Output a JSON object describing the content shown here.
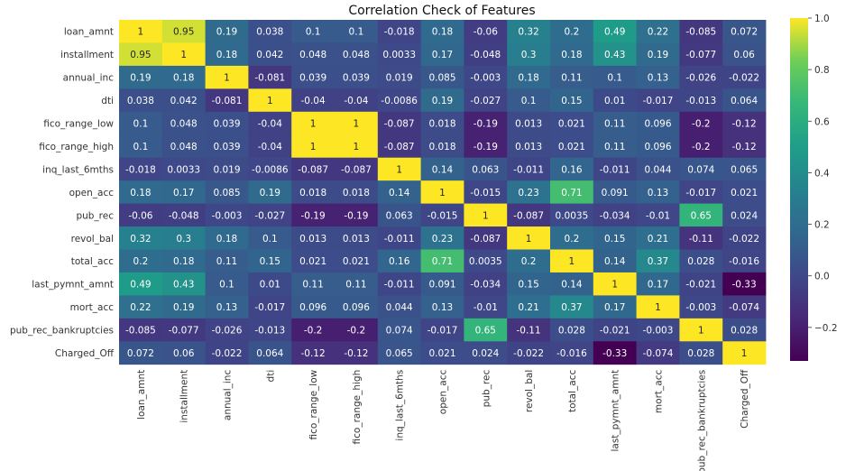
{
  "chart_data": {
    "type": "heatmap",
    "title": "Correlation Check of Features",
    "colormap": "viridis",
    "vmin": -0.33,
    "vmax": 1.0,
    "labels": [
      "loan_amnt",
      "installment",
      "annual_inc",
      "dti",
      "fico_range_low",
      "fico_range_high",
      "inq_last_6mths",
      "open_acc",
      "pub_rec",
      "revol_bal",
      "total_acc",
      "last_pymnt_amnt",
      "mort_acc",
      "pub_rec_bankruptcies",
      "Charged_Off"
    ],
    "matrix": [
      [
        1,
        0.95,
        0.19,
        0.038,
        0.1,
        0.1,
        -0.018,
        0.18,
        -0.06,
        0.32,
        0.2,
        0.49,
        0.22,
        -0.085,
        0.072
      ],
      [
        0.95,
        1,
        0.18,
        0.042,
        0.048,
        0.048,
        0.0033,
        0.17,
        -0.048,
        0.3,
        0.18,
        0.43,
        0.19,
        -0.077,
        0.06
      ],
      [
        0.19,
        0.18,
        1,
        -0.081,
        0.039,
        0.039,
        0.019,
        0.085,
        -0.003,
        0.18,
        0.11,
        0.1,
        0.13,
        -0.026,
        -0.022
      ],
      [
        0.038,
        0.042,
        -0.081,
        1,
        -0.04,
        -0.04,
        -0.0086,
        0.19,
        -0.027,
        0.1,
        0.15,
        0.01,
        -0.017,
        -0.013,
        0.064
      ],
      [
        0.1,
        0.048,
        0.039,
        -0.04,
        1,
        1,
        -0.087,
        0.018,
        -0.19,
        0.013,
        0.021,
        0.11,
        0.096,
        -0.2,
        -0.12
      ],
      [
        0.1,
        0.048,
        0.039,
        -0.04,
        1,
        1,
        -0.087,
        0.018,
        -0.19,
        0.013,
        0.021,
        0.11,
        0.096,
        -0.2,
        -0.12
      ],
      [
        -0.018,
        0.0033,
        0.019,
        -0.0086,
        -0.087,
        -0.087,
        1,
        0.14,
        0.063,
        -0.011,
        0.16,
        -0.011,
        0.044,
        0.074,
        0.065
      ],
      [
        0.18,
        0.17,
        0.085,
        0.19,
        0.018,
        0.018,
        0.14,
        1,
        -0.015,
        0.23,
        0.71,
        0.091,
        0.13,
        -0.017,
        0.021
      ],
      [
        -0.06,
        -0.048,
        -0.003,
        -0.027,
        -0.19,
        -0.19,
        0.063,
        -0.015,
        1,
        -0.087,
        0.0035,
        -0.034,
        -0.01,
        0.65,
        0.024
      ],
      [
        0.32,
        0.3,
        0.18,
        0.1,
        0.013,
        0.013,
        -0.011,
        0.23,
        -0.087,
        1,
        0.2,
        0.15,
        0.21,
        -0.11,
        -0.022
      ],
      [
        0.2,
        0.18,
        0.11,
        0.15,
        0.021,
        0.021,
        0.16,
        0.71,
        0.0035,
        0.2,
        1,
        0.14,
        0.37,
        0.028,
        -0.016
      ],
      [
        0.49,
        0.43,
        0.1,
        0.01,
        0.11,
        0.11,
        -0.011,
        0.091,
        -0.034,
        0.15,
        0.14,
        1,
        0.17,
        -0.021,
        -0.33
      ],
      [
        0.22,
        0.19,
        0.13,
        -0.017,
        0.096,
        0.096,
        0.044,
        0.13,
        -0.01,
        0.21,
        0.37,
        0.17,
        1,
        -0.003,
        -0.074
      ],
      [
        -0.085,
        -0.077,
        -0.026,
        -0.013,
        -0.2,
        -0.2,
        0.074,
        -0.017,
        0.65,
        -0.11,
        0.028,
        -0.021,
        -0.003,
        1,
        0.028
      ],
      [
        0.072,
        0.06,
        -0.022,
        0.064,
        -0.12,
        -0.12,
        0.065,
        0.021,
        0.024,
        -0.022,
        -0.016,
        -0.33,
        -0.074,
        0.028,
        1
      ]
    ],
    "colorbar": {
      "ticks": [
        -0.2,
        0.0,
        0.2,
        0.4,
        0.6,
        0.8,
        1.0
      ],
      "tick_labels": [
        "−0.2",
        "0.0",
        "0.2",
        "0.4",
        "0.6",
        "0.8",
        "1.0"
      ]
    },
    "annotations_on": true
  }
}
